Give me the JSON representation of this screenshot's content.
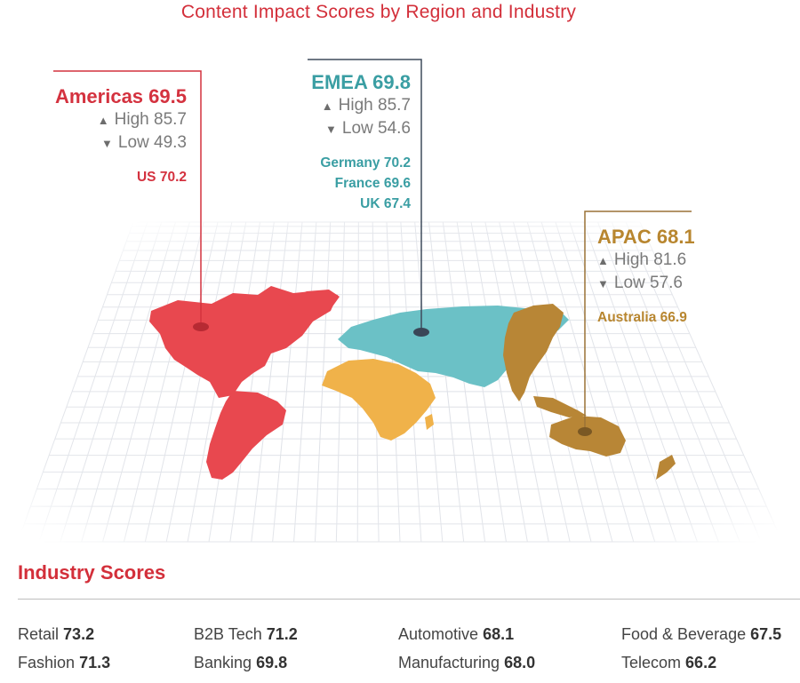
{
  "header": {
    "subtitle": "Content Impact Scores by Region and Industry"
  },
  "colors": {
    "americas": "#e8484f",
    "emea": "#6bc1c6",
    "africa": "#f0b24a",
    "apac": "#b88636",
    "accent": "#d32f3a",
    "grid": "#dde0e6"
  },
  "regions": {
    "americas": {
      "name": "Americas",
      "score": "69.5",
      "high_label": "High",
      "high": "85.7",
      "low_label": "Low",
      "low": "49.3",
      "countries": [
        {
          "name": "US",
          "score": "70.2"
        }
      ]
    },
    "emea": {
      "name": "EMEA",
      "score": "69.8",
      "high_label": "High",
      "high": "85.7",
      "low_label": "Low",
      "low": "54.6",
      "countries": [
        {
          "name": "Germany",
          "score": "70.2"
        },
        {
          "name": "France",
          "score": "69.6"
        },
        {
          "name": "UK",
          "score": "67.4"
        }
      ]
    },
    "apac": {
      "name": "APAC",
      "score": "68.1",
      "high_label": "High",
      "high": "81.6",
      "low_label": "Low",
      "low": "57.6",
      "countries": [
        {
          "name": "Australia",
          "score": "66.9"
        }
      ]
    }
  },
  "industry": {
    "title": "Industry Scores",
    "items": [
      {
        "name": "Retail",
        "score": "73.2"
      },
      {
        "name": "Fashion",
        "score": "71.3"
      },
      {
        "name": "B2B Tech",
        "score": "71.2"
      },
      {
        "name": "Banking",
        "score": "69.8"
      },
      {
        "name": "Automotive",
        "score": "68.1"
      },
      {
        "name": "Manufacturing",
        "score": "68.0"
      },
      {
        "name": "Food & Beverage",
        "score": "67.5"
      },
      {
        "name": "Telecom",
        "score": "66.2"
      }
    ]
  }
}
